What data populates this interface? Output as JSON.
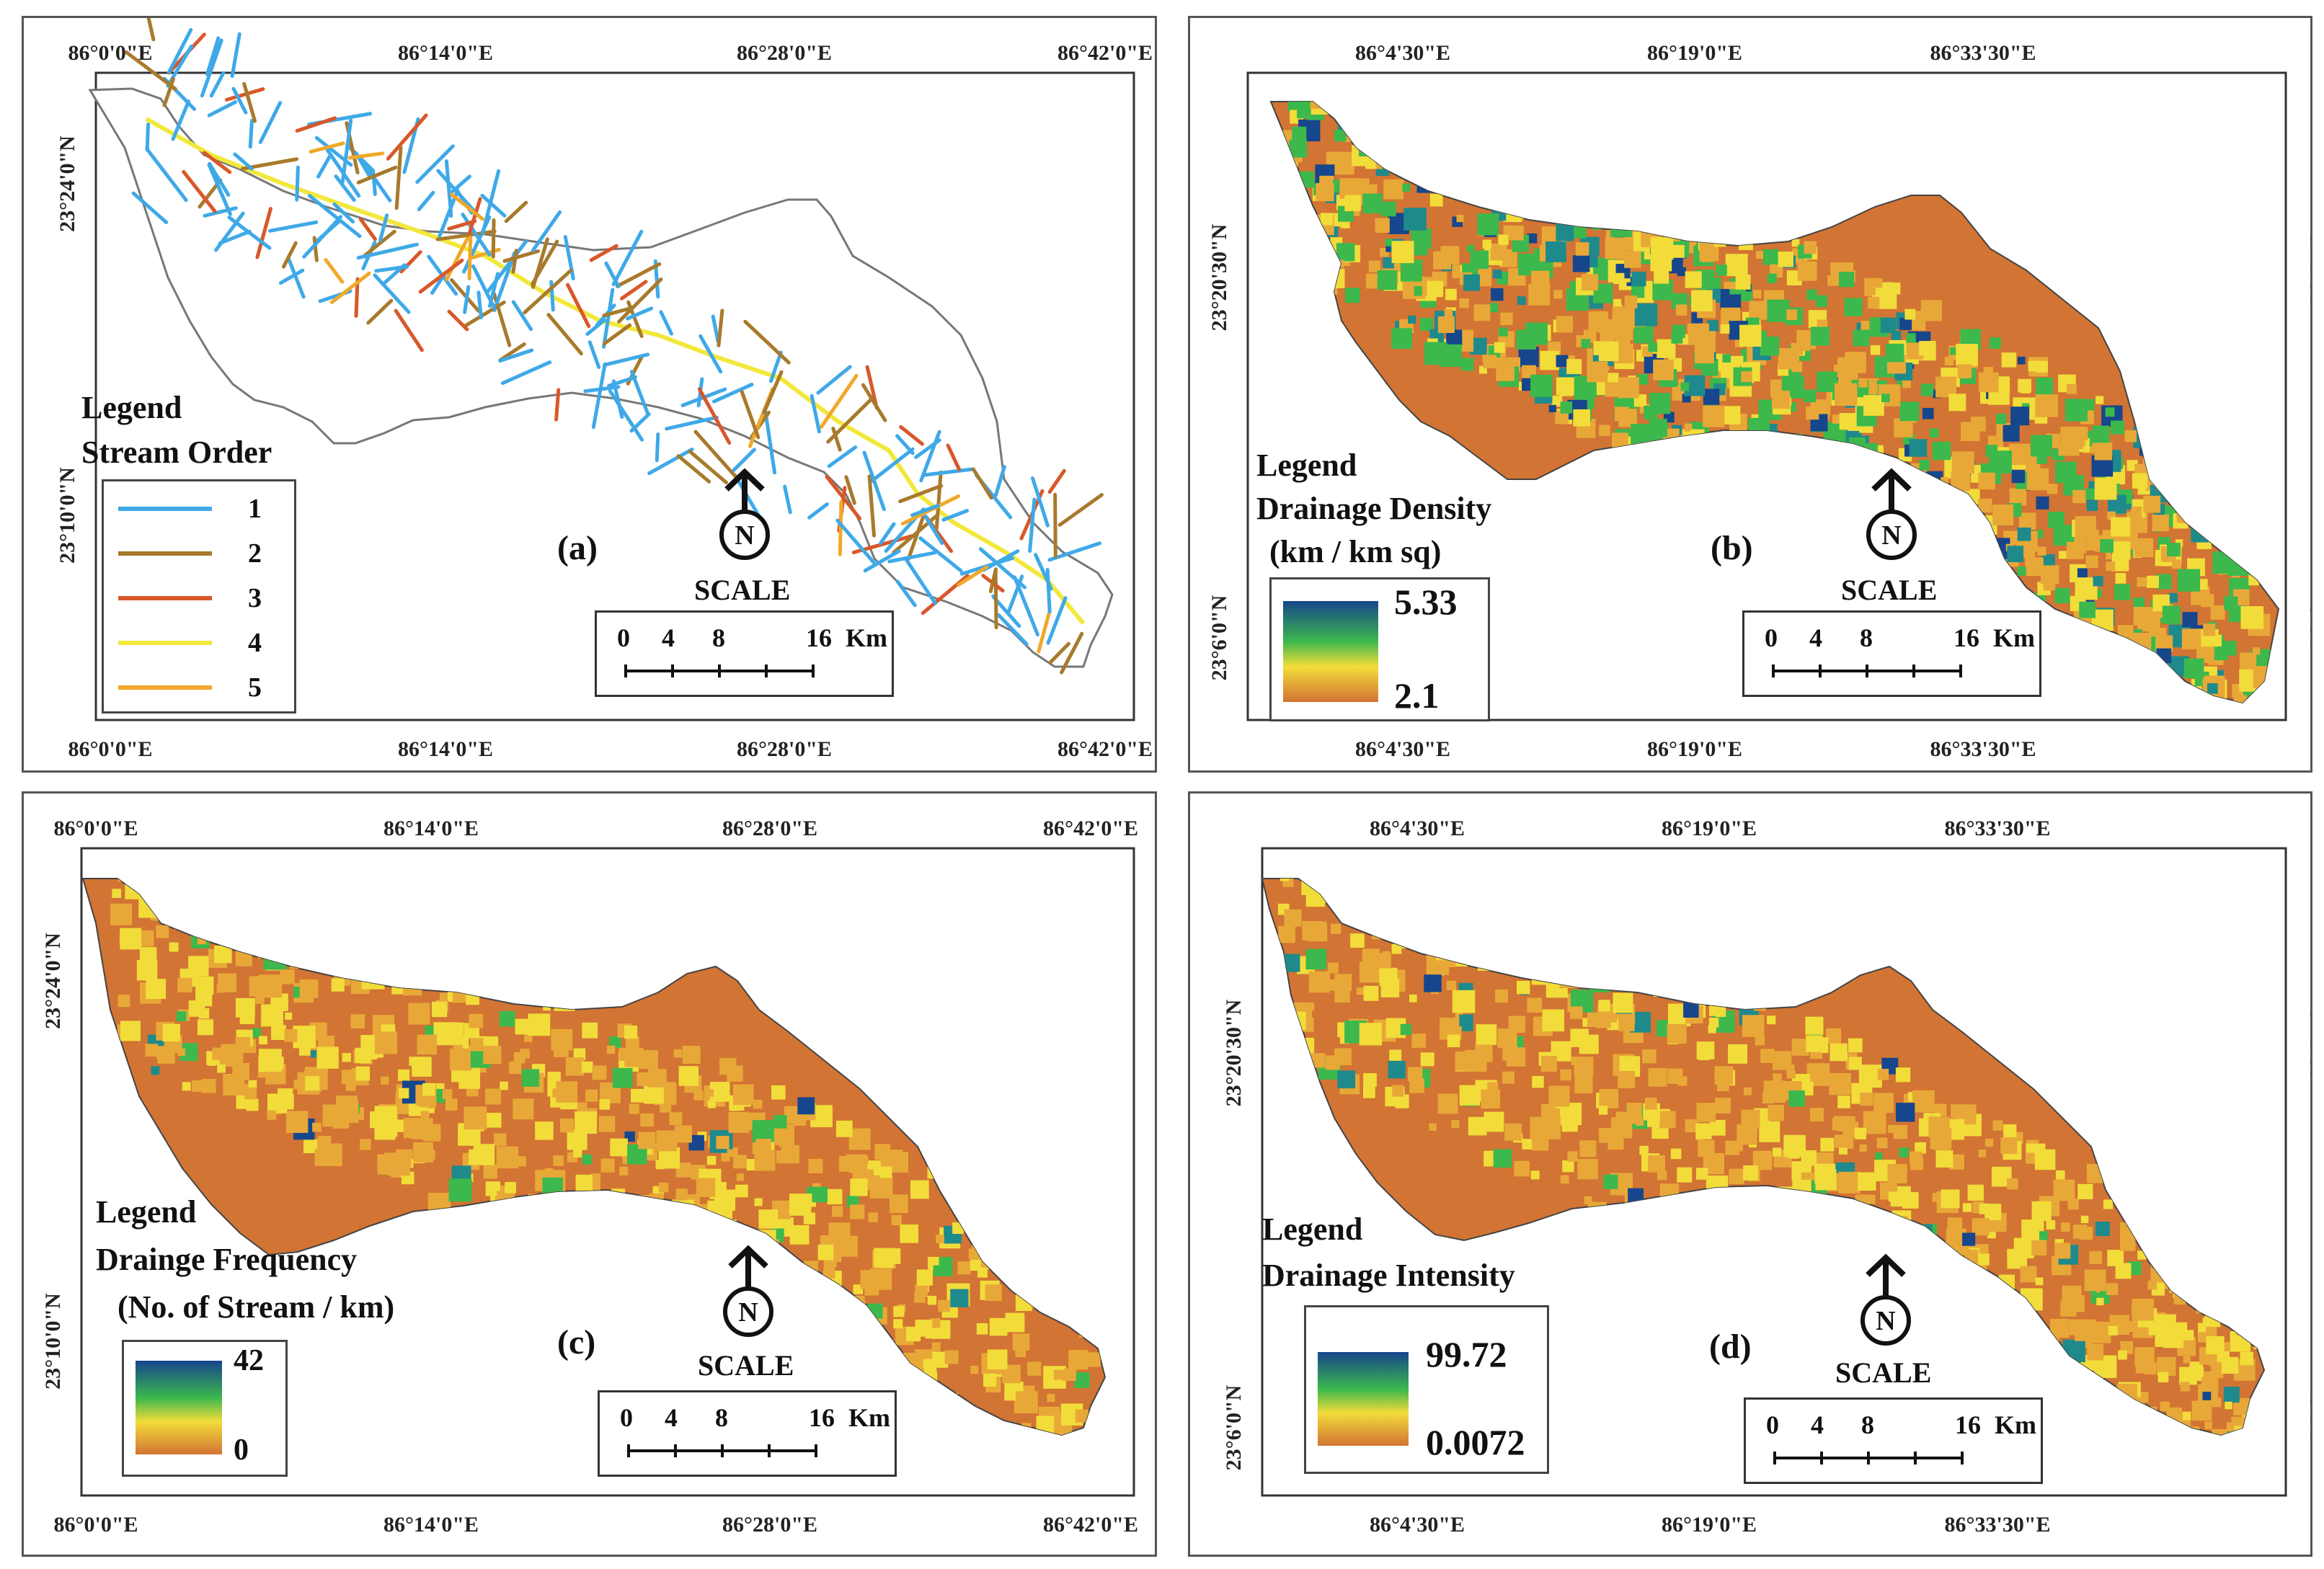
{
  "panels": [
    {
      "id": "a",
      "letter": "(a)",
      "legend_title_1": "Legend",
      "legend_title_2": "Stream Order",
      "stream_orders": [
        {
          "label": "1",
          "color": "#3fa9e8"
        },
        {
          "label": "2",
          "color": "#a87a2c"
        },
        {
          "label": "3",
          "color": "#d8582a"
        },
        {
          "label": "4",
          "color": "#f2e83c"
        },
        {
          "label": "5",
          "color": "#f0a82a"
        }
      ],
      "top_labels": [
        "86°0'0\"E",
        "86°14'0\"E",
        "86°28'0\"E",
        "86°42'0\"E"
      ],
      "bottom_labels": [
        "86°0'0\"E",
        "86°14'0\"E",
        "86°28'0\"E",
        "86°42'0\"E"
      ],
      "left_labels": [
        "23°24'0\"N",
        "23°10'0\"N"
      ],
      "right_labels": [
        "23°24'0\"N",
        "23°10'0\"N"
      ],
      "scale_word": "SCALE",
      "scale_labels": [
        "0",
        "4",
        "8",
        "16",
        "Km"
      ],
      "north": "N"
    },
    {
      "id": "b",
      "letter": "(b)",
      "legend_title_1": "Legend",
      "legend_title_2": "Drainage Density",
      "legend_title_3": "(km / km sq)",
      "ramp_max": "5.33",
      "ramp_min": "2.1",
      "top_labels": [
        "86°4'30\"E",
        "86°19'0\"E",
        "86°33'30\"E"
      ],
      "bottom_labels": [
        "86°4'30\"E",
        "86°19'0\"E",
        "86°33'30\"E"
      ],
      "left_labels": [
        "23°20'30\"N",
        "23°6'0\"N"
      ],
      "right_labels": [
        "23°20'30\"N",
        "23°6'0\"N"
      ],
      "scale_word": "SCALE",
      "scale_labels": [
        "0",
        "4",
        "8",
        "16",
        "Km"
      ],
      "north": "N"
    },
    {
      "id": "c",
      "letter": "(c)",
      "legend_title_1": "Legend",
      "legend_title_2": "Drainge Frequency",
      "legend_title_3": "(No. of Stream / km)",
      "ramp_max": "42",
      "ramp_min": "0",
      "top_labels": [
        "86°0'0\"E",
        "86°14'0\"E",
        "86°28'0\"E",
        "86°42'0\"E"
      ],
      "bottom_labels": [
        "86°0'0\"E",
        "86°14'0\"E",
        "86°28'0\"E",
        "86°42'0\"E"
      ],
      "left_labels": [
        "23°24'0\"N",
        "23°10'0\"N"
      ],
      "right_labels": [
        "23°24'0\"N",
        "23°10'0\"N"
      ],
      "scale_word": "SCALE",
      "scale_labels": [
        "0",
        "4",
        "8",
        "16",
        "Km"
      ],
      "north": "N"
    },
    {
      "id": "d",
      "letter": "(d)",
      "legend_title_1": "Legend",
      "legend_title_2": "Drainage Intensity",
      "ramp_max": "99.72",
      "ramp_min": "0.0072",
      "top_labels": [
        "86°4'30\"E",
        "86°19'0\"E",
        "86°33'30\"E"
      ],
      "bottom_labels": [
        "86°4'30\"E",
        "86°19'0\"E",
        "86°33'30\"E"
      ],
      "left_labels": [
        "23°20'30\"N",
        "23°6'0\"N"
      ],
      "right_labels": [
        "23°20'30\"N",
        "23°6'0\"N"
      ],
      "scale_word": "SCALE",
      "scale_labels": [
        "0",
        "4",
        "8",
        "16",
        "Km"
      ],
      "north": "N"
    }
  ],
  "colors": {
    "raster_base": "#d27433",
    "raster_mid": "#e8a838",
    "raster_yellow": "#f2dc3a",
    "raster_green": "#3cb84c",
    "raster_teal": "#1f8a8c",
    "raster_blue": "#16468c",
    "frame": "#555555"
  }
}
